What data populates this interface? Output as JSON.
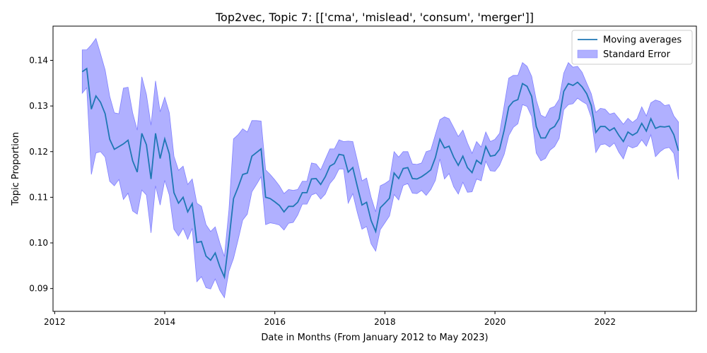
{
  "chart_data": {
    "type": "line",
    "title": "Top2vec, Topic 7: [['cma', 'mislead', 'consum', 'merger']]",
    "xlabel": "Date in Months (From January 2012 to May 2023)",
    "ylabel": "Topic Proportion",
    "xlim": [
      2011.97,
      2023.66
    ],
    "ylim": [
      0.085,
      0.1475
    ],
    "x_ticks": [
      2012,
      2014,
      2016,
      2018,
      2020,
      2022
    ],
    "x_tick_labels": [
      "2012",
      "2014",
      "2016",
      "2018",
      "2020",
      "2022"
    ],
    "y_ticks": [
      0.09,
      0.1,
      0.11,
      0.12,
      0.13,
      0.14
    ],
    "y_tick_labels": [
      "0.09",
      "0.10",
      "0.11",
      "0.12",
      "0.13",
      "0.14"
    ],
    "grid": false,
    "legend_position": "top-right",
    "colors": {
      "line": "#1f77b4",
      "band": "#b0b0ff",
      "band_edge": "#8080ff"
    },
    "series": [
      {
        "name": "Moving averages",
        "x": [
          "2012-07",
          "2012-08",
          "2012-09",
          "2012-10",
          "2012-11",
          "2012-12",
          "2013-01",
          "2013-02",
          "2013-03",
          "2013-04",
          "2013-05",
          "2013-06",
          "2013-07",
          "2013-08",
          "2013-09",
          "2013-10",
          "2013-11",
          "2013-12",
          "2014-01",
          "2014-02",
          "2014-03",
          "2014-04",
          "2014-05",
          "2014-06",
          "2014-07",
          "2014-08",
          "2014-09",
          "2014-10",
          "2014-11",
          "2014-12",
          "2015-01",
          "2015-02",
          "2015-03",
          "2015-04",
          "2015-05",
          "2015-06",
          "2015-07",
          "2015-08",
          "2015-09",
          "2015-10",
          "2015-11",
          "2015-12",
          "2016-01",
          "2016-02",
          "2016-03",
          "2016-04",
          "2016-05",
          "2016-06",
          "2016-07",
          "2016-08",
          "2016-09",
          "2016-10",
          "2016-11",
          "2016-12",
          "2017-01",
          "2017-02",
          "2017-03",
          "2017-04",
          "2017-05",
          "2017-06",
          "2017-07",
          "2017-08",
          "2017-09",
          "2017-10",
          "2017-11",
          "2017-12",
          "2018-01",
          "2018-02",
          "2018-03",
          "2018-04",
          "2018-05",
          "2018-06",
          "2018-07",
          "2018-08",
          "2018-09",
          "2018-10",
          "2018-11",
          "2018-12",
          "2019-01",
          "2019-02",
          "2019-03",
          "2019-04",
          "2019-05",
          "2019-06",
          "2019-07",
          "2019-08",
          "2019-09",
          "2019-10",
          "2019-11",
          "2019-12",
          "2020-01",
          "2020-02",
          "2020-03",
          "2020-04",
          "2020-05",
          "2020-06",
          "2020-07",
          "2020-08",
          "2020-09",
          "2020-10",
          "2020-11",
          "2020-12",
          "2021-01",
          "2021-02",
          "2021-03",
          "2021-04",
          "2021-05",
          "2021-06",
          "2021-07",
          "2021-08",
          "2021-09",
          "2021-10",
          "2021-11",
          "2021-12",
          "2022-01",
          "2022-02",
          "2022-03",
          "2022-04",
          "2022-05",
          "2022-06",
          "2022-07",
          "2022-08",
          "2022-09",
          "2022-10",
          "2022-11",
          "2022-12",
          "2023-01",
          "2023-02",
          "2023-03",
          "2023-04",
          "2023-05"
        ],
        "y": [
          0.1375,
          0.1382,
          0.1293,
          0.1322,
          0.1308,
          0.1283,
          0.1227,
          0.1205,
          0.1211,
          0.1217,
          0.1225,
          0.118,
          0.1155,
          0.124,
          0.1215,
          0.114,
          0.124,
          0.1185,
          0.1228,
          0.1195,
          0.111,
          0.1087,
          0.11,
          0.1068,
          0.1086,
          0.1001,
          0.1003,
          0.0971,
          0.0962,
          0.0978,
          0.0948,
          0.0925,
          0.1005,
          0.1097,
          0.1122,
          0.115,
          0.1153,
          0.119,
          0.1198,
          0.1206,
          0.11,
          0.1097,
          0.109,
          0.1082,
          0.1068,
          0.108,
          0.108,
          0.1089,
          0.111,
          0.111,
          0.114,
          0.1141,
          0.1128,
          0.1145,
          0.1168,
          0.1174,
          0.1194,
          0.1192,
          0.1155,
          0.1165,
          0.1123,
          0.1083,
          0.1089,
          0.1049,
          0.1025,
          0.1077,
          0.1087,
          0.1098,
          0.1153,
          0.1141,
          0.1163,
          0.1165,
          0.1141,
          0.114,
          0.1145,
          0.1152,
          0.116,
          0.1187,
          0.1227,
          0.1208,
          0.1212,
          0.1188,
          0.117,
          0.119,
          0.1165,
          0.1154,
          0.1181,
          0.1173,
          0.1211,
          0.119,
          0.1192,
          0.1205,
          0.1247,
          0.1298,
          0.131,
          0.1314,
          0.1349,
          0.1343,
          0.1321,
          0.1255,
          0.123,
          0.123,
          0.1249,
          0.1255,
          0.1272,
          0.1332,
          0.1349,
          0.1345,
          0.1352,
          0.1342,
          0.1327,
          0.1301,
          0.1242,
          0.1255,
          0.1255,
          0.1246,
          0.1252,
          0.1236,
          0.1222,
          0.1243,
          0.1236,
          0.1242,
          0.1262,
          0.1245,
          0.1272,
          0.1251,
          0.1255,
          0.1254,
          0.1256,
          0.1237,
          0.1202
        ]
      },
      {
        "name": "Standard Error",
        "upper": [
          0.1423,
          0.1423,
          0.1434,
          0.1448,
          0.1414,
          0.1379,
          0.1321,
          0.1285,
          0.1283,
          0.1339,
          0.1341,
          0.1285,
          0.1247,
          0.1364,
          0.1325,
          0.1258,
          0.1355,
          0.1287,
          0.1319,
          0.1285,
          0.119,
          0.1159,
          0.1168,
          0.1128,
          0.114,
          0.1087,
          0.108,
          0.104,
          0.1025,
          0.1035,
          0.1,
          0.097,
          0.1072,
          0.1228,
          0.1237,
          0.125,
          0.1243,
          0.1268,
          0.1268,
          0.1267,
          0.116,
          0.115,
          0.1138,
          0.1125,
          0.1108,
          0.1117,
          0.1115,
          0.1117,
          0.1135,
          0.1135,
          0.1175,
          0.1173,
          0.116,
          0.1183,
          0.1206,
          0.1206,
          0.1226,
          0.1222,
          0.1223,
          0.1222,
          0.118,
          0.1136,
          0.1142,
          0.11,
          0.1068,
          0.1125,
          0.113,
          0.1137,
          0.12,
          0.1188,
          0.12,
          0.12,
          0.1173,
          0.1172,
          0.1175,
          0.12,
          0.1203,
          0.1237,
          0.127,
          0.1276,
          0.1272,
          0.1253,
          0.1233,
          0.1247,
          0.1219,
          0.1196,
          0.1222,
          0.121,
          0.1243,
          0.1222,
          0.1227,
          0.124,
          0.13,
          0.1361,
          0.1367,
          0.1367,
          0.1395,
          0.1387,
          0.1365,
          0.1313,
          0.128,
          0.1275,
          0.1295,
          0.1299,
          0.1315,
          0.1372,
          0.1395,
          0.1385,
          0.1387,
          0.1374,
          0.135,
          0.1327,
          0.1286,
          0.1295,
          0.1293,
          0.1282,
          0.1285,
          0.1273,
          0.126,
          0.1273,
          0.1264,
          0.1272,
          0.1298,
          0.1278,
          0.1307,
          0.1313,
          0.131,
          0.1301,
          0.1303,
          0.1278,
          0.1265
        ],
        "lower": [
          0.1328,
          0.134,
          0.115,
          0.1197,
          0.12,
          0.1188,
          0.1135,
          0.1125,
          0.1139,
          0.1095,
          0.1109,
          0.107,
          0.1063,
          0.1116,
          0.1105,
          0.1022,
          0.1125,
          0.1083,
          0.1137,
          0.1105,
          0.103,
          0.1015,
          0.1032,
          0.1008,
          0.1032,
          0.0915,
          0.0926,
          0.0902,
          0.0899,
          0.0921,
          0.0896,
          0.088,
          0.0938,
          0.0966,
          0.1007,
          0.105,
          0.1063,
          0.1112,
          0.1128,
          0.1145,
          0.104,
          0.1044,
          0.1042,
          0.1039,
          0.1028,
          0.1043,
          0.1045,
          0.1061,
          0.1085,
          0.1085,
          0.1105,
          0.1109,
          0.1096,
          0.1107,
          0.113,
          0.1142,
          0.1162,
          0.1162,
          0.1087,
          0.1108,
          0.1066,
          0.103,
          0.1036,
          0.0998,
          0.0982,
          0.1029,
          0.1044,
          0.1059,
          0.1106,
          0.1094,
          0.1126,
          0.113,
          0.1109,
          0.1108,
          0.1115,
          0.1104,
          0.1117,
          0.1137,
          0.1184,
          0.114,
          0.1152,
          0.1123,
          0.1107,
          0.1133,
          0.1111,
          0.1112,
          0.114,
          0.1136,
          0.1179,
          0.1158,
          0.1157,
          0.117,
          0.1194,
          0.1235,
          0.1253,
          0.1261,
          0.1303,
          0.1299,
          0.1277,
          0.1197,
          0.118,
          0.1185,
          0.1203,
          0.1211,
          0.1229,
          0.1292,
          0.1303,
          0.1305,
          0.1317,
          0.131,
          0.1304,
          0.1275,
          0.1198,
          0.1215,
          0.1217,
          0.121,
          0.1219,
          0.1199,
          0.1184,
          0.1213,
          0.1208,
          0.1212,
          0.1226,
          0.1212,
          0.1237,
          0.1189,
          0.12,
          0.1207,
          0.1209,
          0.1196,
          0.1139
        ]
      }
    ]
  }
}
